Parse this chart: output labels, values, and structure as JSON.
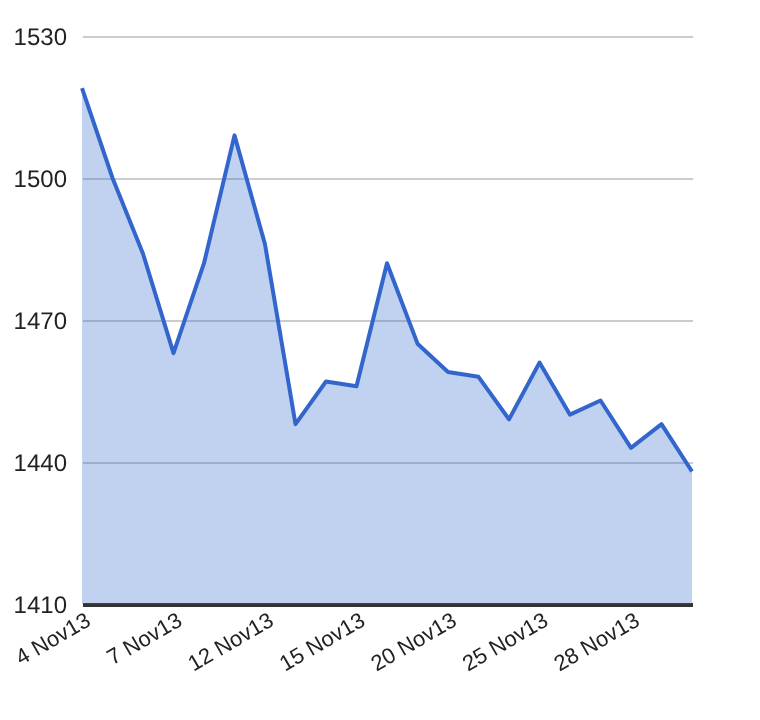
{
  "chart_data": {
    "type": "area",
    "categories": [
      "4 Nov13",
      null,
      null,
      "7 Nov13",
      null,
      null,
      "12 Nov13",
      null,
      null,
      "15 Nov13",
      null,
      null,
      "20 Nov13",
      null,
      null,
      "25 Nov13",
      null,
      null,
      "28 Nov13",
      null,
      null
    ],
    "series": [
      {
        "color": "#3366cc",
        "values": [
          1519,
          1500,
          1484,
          1463,
          1482,
          1509,
          1486,
          1448,
          1457,
          1456,
          1482,
          1465,
          1459,
          1458,
          1449,
          1461,
          1450,
          1453,
          1443,
          1448,
          1438
        ]
      }
    ],
    "ylim": [
      1410,
      1530
    ],
    "yticks": [
      1410,
      1440,
      1470,
      1500,
      1530
    ],
    "grid": "y"
  }
}
